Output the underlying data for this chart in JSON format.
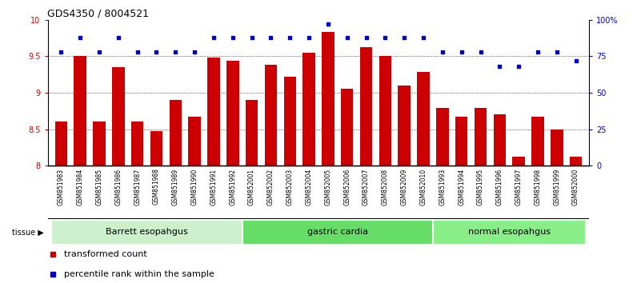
{
  "title": "GDS4350 / 8004521",
  "samples": [
    "GSM851983",
    "GSM851984",
    "GSM851985",
    "GSM851986",
    "GSM851987",
    "GSM851988",
    "GSM851989",
    "GSM851990",
    "GSM851991",
    "GSM851992",
    "GSM852001",
    "GSM852002",
    "GSM852003",
    "GSM852004",
    "GSM852005",
    "GSM852006",
    "GSM852007",
    "GSM852008",
    "GSM852009",
    "GSM852010",
    "GSM851993",
    "GSM851994",
    "GSM851995",
    "GSM851996",
    "GSM851997",
    "GSM851998",
    "GSM851999",
    "GSM852000"
  ],
  "bar_values": [
    8.6,
    9.5,
    8.6,
    9.35,
    8.6,
    8.47,
    8.9,
    8.67,
    9.48,
    9.44,
    8.9,
    9.38,
    9.22,
    9.55,
    9.83,
    9.05,
    9.62,
    9.5,
    9.1,
    9.28,
    8.79,
    8.67,
    8.79,
    8.7,
    8.12,
    8.67,
    8.5,
    8.12
  ],
  "percentile_values": [
    78,
    88,
    78,
    88,
    78,
    78,
    78,
    78,
    88,
    88,
    88,
    88,
    88,
    88,
    97,
    88,
    88,
    88,
    88,
    88,
    78,
    78,
    78,
    68,
    68,
    78,
    78,
    72
  ],
  "groups": [
    {
      "label": "Barrett esopahgus",
      "start": 0,
      "end": 10,
      "color": "#ccf0cc"
    },
    {
      "label": "gastric cardia",
      "start": 10,
      "end": 20,
      "color": "#66dd66"
    },
    {
      "label": "normal esopahgus",
      "start": 20,
      "end": 28,
      "color": "#88ee88"
    }
  ],
  "ylim": [
    8.0,
    10.0
  ],
  "yticks": [
    8.0,
    8.5,
    9.0,
    9.5,
    10.0
  ],
  "y2ticks": [
    0,
    25,
    50,
    75,
    100
  ],
  "bar_color": "#cc0000",
  "dot_color": "#0000cc",
  "grid_color": "#000000",
  "title_fontsize": 9,
  "tick_fontsize": 7,
  "label_fontsize": 8,
  "legend_fontsize": 8,
  "xticklabel_fontsize": 5.5,
  "xtick_bg": "#d8d8d8"
}
